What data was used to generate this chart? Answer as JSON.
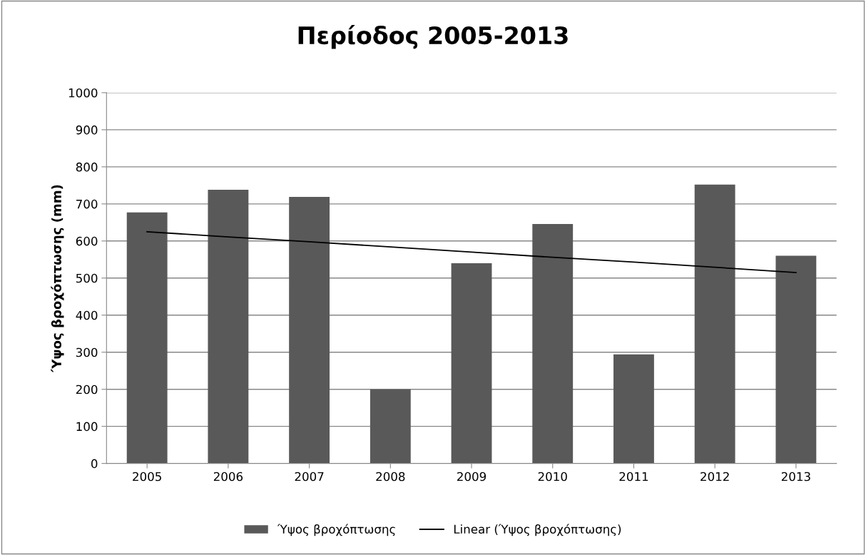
{
  "chart_data": {
    "type": "bar",
    "title": "Περίοδος 2005-2013",
    "ylabel": "Ύψος βροχόπτωσης (mm)",
    "categories": [
      "2005",
      "2006",
      "2007",
      "2008",
      "2009",
      "2010",
      "2011",
      "2012",
      "2013"
    ],
    "series": [
      {
        "name": "Ύψος βροχόπτωσης",
        "color": "#595959",
        "values": [
          677,
          738,
          719,
          200,
          540,
          646,
          294,
          752,
          560
        ]
      },
      {
        "name": "Linear (Ύψος βροχόπτωσης)",
        "type": "line",
        "color": "#000000",
        "values": [
          625,
          611,
          598,
          584,
          570,
          556,
          543,
          529,
          515
        ]
      }
    ],
    "ylim": [
      0,
      1000
    ],
    "yticks": [
      0,
      100,
      200,
      300,
      400,
      500,
      600,
      700,
      800,
      900,
      1000
    ],
    "grid": "y",
    "legend": "bottom"
  }
}
